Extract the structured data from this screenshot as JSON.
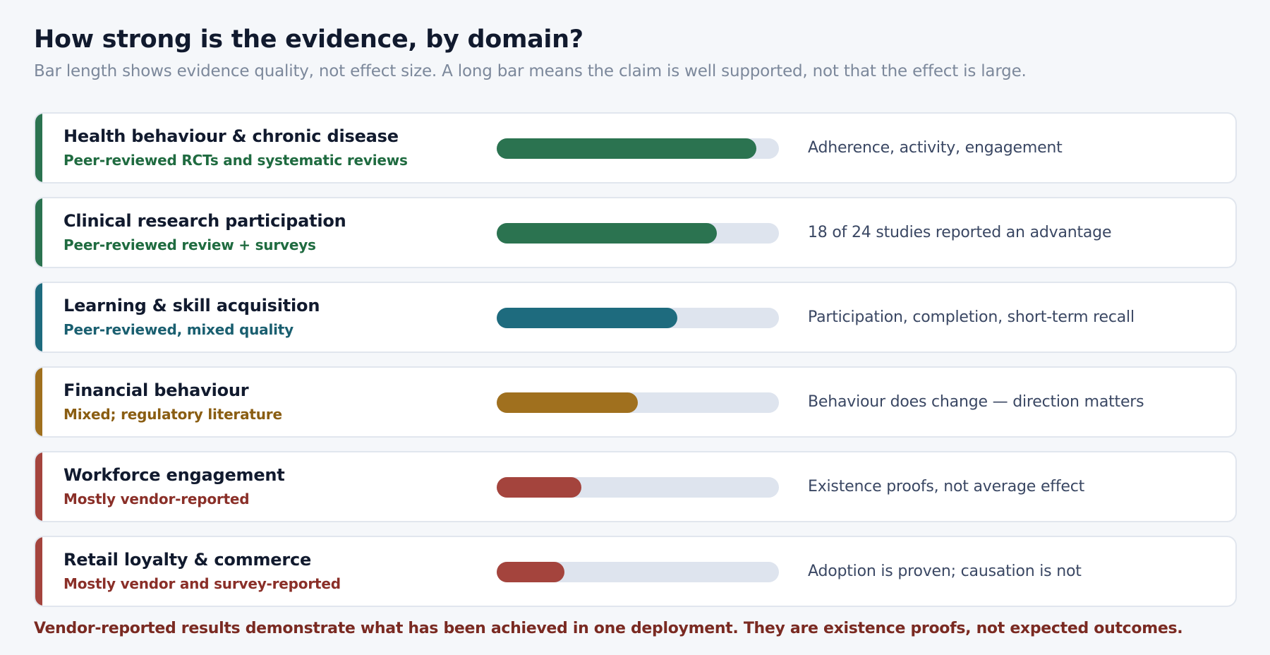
{
  "title": "How strong is the evidence, by domain?",
  "subtitle": "Bar length shows evidence quality, not effect size. A long bar means the claim is well supported, not that the effect is large.",
  "footer": "Vendor-reported results demonstrate what has been achieved in one deployment. They are existence proofs, not expected outcomes.",
  "chart_data": {
    "type": "bar",
    "orientation": "horizontal",
    "xlim": [
      0,
      1
    ],
    "categories": [
      "Health behaviour & chronic disease",
      "Clinical research participation",
      "Learning & skill acquisition",
      "Financial behaviour",
      "Workforce engagement",
      "Retail loyalty & commerce"
    ],
    "values": [
      0.92,
      0.78,
      0.64,
      0.5,
      0.3,
      0.24
    ],
    "rows": [
      {
        "name": "Health behaviour & chronic disease",
        "source": "Peer-reviewed RCTs and systematic reviews",
        "note": "Adherence, activity, engagement",
        "value": 0.92,
        "color": "#2b7350",
        "source_color": "#1f6b40"
      },
      {
        "name": "Clinical research participation",
        "source": "Peer-reviewed review + surveys",
        "note": "18 of 24 studies reported an advantage",
        "value": 0.78,
        "color": "#2b7350",
        "source_color": "#1f6b40"
      },
      {
        "name": "Learning & skill acquisition",
        "source": "Peer-reviewed, mixed quality",
        "note": "Participation, completion, short-term recall",
        "value": 0.64,
        "color": "#1e6b7e",
        "source_color": "#1a5f70"
      },
      {
        "name": "Financial behaviour",
        "source": "Mixed; regulatory literature",
        "note": "Behaviour does change — direction matters",
        "value": 0.5,
        "color": "#a0701e",
        "source_color": "#8a5d12"
      },
      {
        "name": "Workforce engagement",
        "source": "Mostly vendor-reported",
        "note": "Existence proofs, not average effect",
        "value": 0.3,
        "color": "#a4443d",
        "source_color": "#8a2f28"
      },
      {
        "name": "Retail loyalty & commerce",
        "source": "Mostly vendor and survey-reported",
        "note": "Adoption is proven; causation is not",
        "value": 0.24,
        "color": "#a4443d",
        "source_color": "#8a2f28"
      }
    ]
  }
}
